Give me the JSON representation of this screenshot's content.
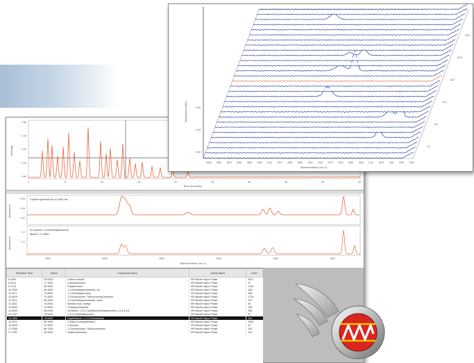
{
  "back_window": {
    "chromatogram": {
      "ylabel": "Intensity",
      "xlabel": "Time (minutes)",
      "y_ticks": [
        "0.40",
        "0.30",
        "0.20",
        "0.10",
        "0.00"
      ],
      "x_ticks": [
        "0",
        "5",
        "10",
        "15",
        "20",
        "25",
        "30",
        "35",
        "40",
        "45"
      ]
    },
    "spectra": {
      "top_label": "Collect spectrum at 11.000 min",
      "bottom_label_1": "N-Octane 1,2-Dimethylbenzene",
      "bottom_label_2": "Match: 71.2050",
      "ylabel_top": "Absorbance",
      "ylabel_bottom": "Absorbance",
      "y_ticks_top": [
        "0.06",
        "0.04",
        "0.02"
      ],
      "y_ticks_bottom": [
        "0.2",
        "0.1"
      ],
      "x_ticks": [
        "3500",
        "3000",
        "2500",
        "2000",
        "1500",
        "1000"
      ],
      "xlabel": "Wavenumbers (cm-1)"
    },
    "table": {
      "columns": [
        "Retention Time",
        "Match",
        "Compound Name",
        "Library Name",
        "Index"
      ],
      "rows": [
        [
          "6.1800",
          "59.0625",
          "Carbon dioxide",
          "HR Nicolet Vapor Phase",
          "5027"
        ],
        [
          "6.4214",
          "77.7810",
          "Dimethyl ketone",
          "HR Nicolet Vapor Phase",
          "47"
        ],
        [
          "8.7143",
          "68.9500",
          "Ethylbenzene",
          "HR Nicolet Vapor Phase",
          "1290"
        ],
        [
          "10.7500",
          "66.3000",
          "1,3-Dimethylcyclohexane, cis",
          "HR Nicolet Vapor Phase",
          "436"
        ],
        [
          "11.0071",
          "79.6500",
          "1,2-Dimethylbenzene",
          "HR Nicolet Vapor Phase",
          "356"
        ],
        [
          "11.8929",
          "70.2857",
          "2-Chlorotoluene, Trifluoromethyl benzene",
          "HR Nicolet Vapor Phase",
          "1715"
        ],
        [
          "12.4571",
          "66.4300",
          "1,3-Dimethylcyclohexane, trans",
          "HR Nicolet Vapor Phase",
          "213"
        ],
        [
          "13.3321",
          "76.5000",
          "Benzoic acid, methyl",
          "HR Nicolet Vapor Phase",
          "82"
        ],
        [
          "13.8643",
          "74.8500",
          "Propylcyclohexane",
          "HR Nicolet Vapor Phase",
          "340"
        ],
        [
          "14.2500",
          "63.2300",
          "Decalene, 1,3,5-Tris(trifluoromethyl)benzene 1,2,3,4,5,6",
          "HR Nicolet Vapor Phase",
          "283"
        ],
        [
          "14.7107",
          "73.9100",
          "1,3,5-Trimethylbenzene",
          "HR Nicolet Vapor Phase",
          "97"
        ],
        [
          "15.1500",
          "79.0000",
          "Naphthalene, 1,2,3,4-tetramethyl",
          "HR Nicolet Vapor Phase",
          "414"
        ],
        [
          "15.9071",
          "65.7800",
          "1-Ethyl-2-methylbenzene",
          "HR Nicolet Vapor Phase",
          "1592"
        ],
        [
          "16.3929",
          "67.2500",
          "n-Decane",
          "HR Nicolet Vapor Phase",
          "31"
        ],
        [
          "17.0286",
          "66.7000",
          "2-Chlorotoluene, Trifluorobenzene",
          "HR Nicolet Vapor Phase",
          "263"
        ],
        [
          "17.7357",
          "59.4400",
          "Butylcyclohexane",
          "HR Nicolet Vapor Phase",
          "112"
        ]
      ],
      "selected_row": 11
    }
  },
  "front_window": {
    "ylabel": "Absorbance (abs)",
    "xlabel": "Wavenumbers (cm-1)",
    "y_ticks": [
      "0.20",
      "0.00",
      "0.00"
    ],
    "x_ticks": [
      "3950",
      "3810",
      "3670",
      "3530",
      "3390",
      "3250",
      "3110",
      "2970",
      "2830",
      "2690",
      "2550",
      "2410",
      "2270",
      "2130",
      "1990",
      "1850",
      "1710",
      "1570",
      "1430",
      "1290",
      "1150"
    ],
    "depth_ticks": [
      "4.0",
      "8.0",
      "12.0",
      "16.0",
      "20.0",
      "24.0"
    ]
  },
  "colors": {
    "accent_orange": "#e8643a",
    "trace_blue": "#2f3f9e",
    "logo_red": "#d8261f",
    "logo_yellow": "#f2c200"
  }
}
